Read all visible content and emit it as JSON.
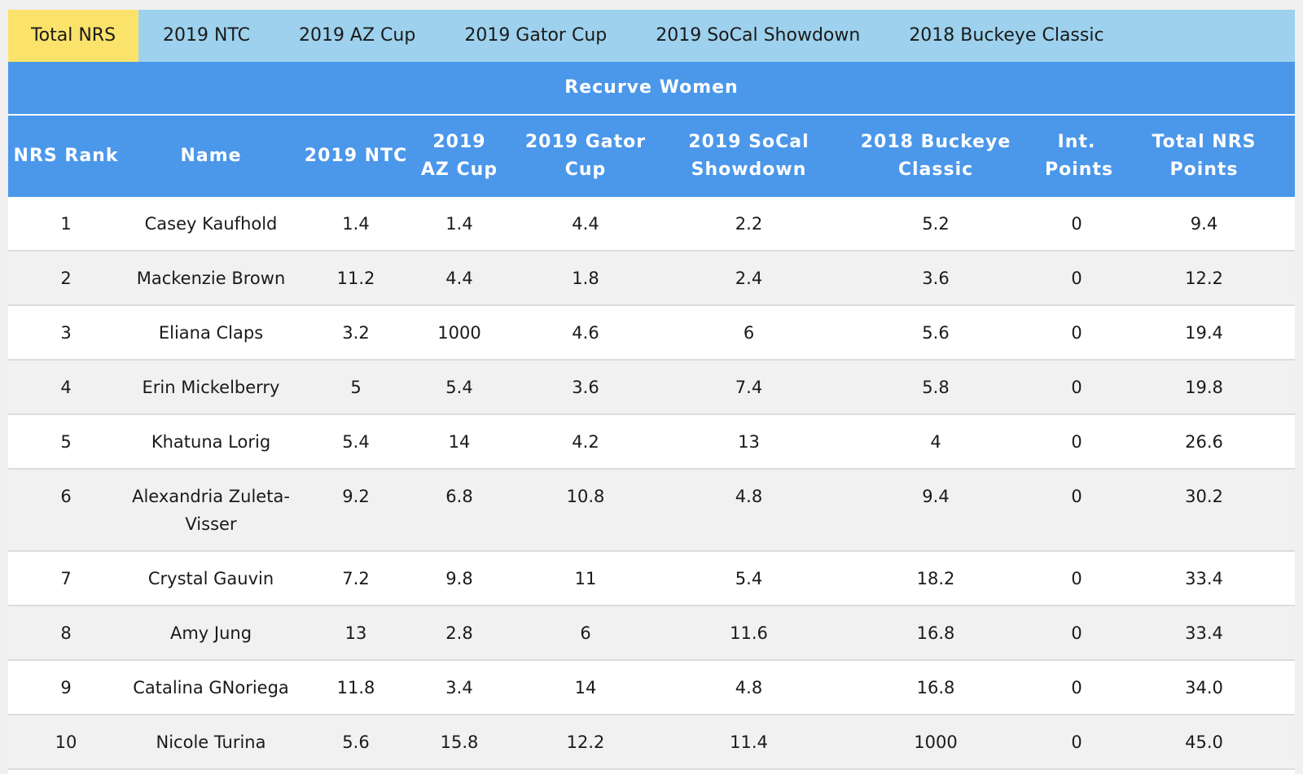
{
  "tabs": [
    {
      "label": "Total NRS",
      "active": true
    },
    {
      "label": "2019 NTC",
      "active": false
    },
    {
      "label": "2019 AZ Cup",
      "active": false
    },
    {
      "label": "2019 Gator Cup",
      "active": false
    },
    {
      "label": "2019 SoCal Showdown",
      "active": false
    },
    {
      "label": "2018 Buckeye Classic",
      "active": false
    }
  ],
  "table_title": "Recurve Women",
  "columns": [
    "NRS Rank",
    "Name",
    "2019 NTC",
    "2019 AZ Cup",
    "2019 Gator Cup",
    "2019 SoCal Showdown",
    "2018 Buckeye Classic",
    "Int. Points",
    "Total NRS Points"
  ],
  "rows": [
    [
      "1",
      "Casey Kaufhold",
      "1.4",
      "1.4",
      "4.4",
      "2.2",
      "5.2",
      "0",
      "9.4"
    ],
    [
      "2",
      "Mackenzie Brown",
      "11.2",
      "4.4",
      "1.8",
      "2.4",
      "3.6",
      "0",
      "12.2"
    ],
    [
      "3",
      "Eliana Claps",
      "3.2",
      "1000",
      "4.6",
      "6",
      "5.6",
      "0",
      "19.4"
    ],
    [
      "4",
      "Erin Mickelberry",
      "5",
      "5.4",
      "3.6",
      "7.4",
      "5.8",
      "0",
      "19.8"
    ],
    [
      "5",
      "Khatuna Lorig",
      "5.4",
      "14",
      "4.2",
      "13",
      "4",
      "0",
      "26.6"
    ],
    [
      "6",
      "Alexandria Zuleta-Visser",
      "9.2",
      "6.8",
      "10.8",
      "4.8",
      "9.4",
      "0",
      "30.2"
    ],
    [
      "7",
      "Crystal Gauvin",
      "7.2",
      "9.8",
      "11",
      "5.4",
      "18.2",
      "0",
      "33.4"
    ],
    [
      "8",
      "Amy Jung",
      "13",
      "2.8",
      "6",
      "11.6",
      "16.8",
      "0",
      "33.4"
    ],
    [
      "9",
      "Catalina GNoriega",
      "11.8",
      "3.4",
      "14",
      "4.8",
      "16.8",
      "0",
      "34.0"
    ],
    [
      "10",
      "Nicole Turina",
      "5.6",
      "15.8",
      "12.2",
      "11.4",
      "1000",
      "0",
      "45.0"
    ]
  ],
  "colors": {
    "tab_bar": "#9dd1ed",
    "tab_active": "#fbe36b",
    "header": "#4b97ea",
    "row_alt": "#f1f1f1"
  }
}
